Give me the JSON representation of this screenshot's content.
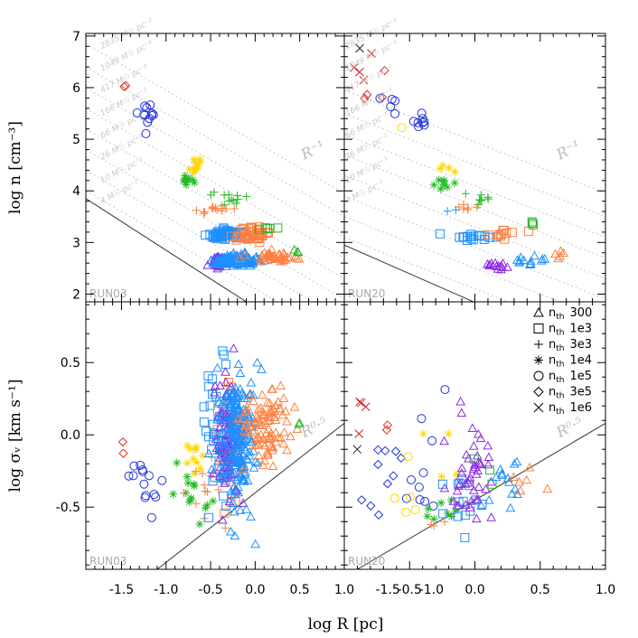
{
  "chart_data": {
    "type": "scatter",
    "xlabel": "log R [pc]",
    "x_ticks": [
      "-1.5",
      "-1.0",
      "-0.5",
      "0.0",
      "0.5",
      "1.0"
    ],
    "top_row": {
      "ylabel": "log n [cm⁻³]",
      "ylim": [
        1.85,
        7.05
      ],
      "y_ticks": [
        "2",
        "3",
        "4",
        "5",
        "6",
        "7"
      ],
      "guide_label": "R⁻¹",
      "surface_density_labels": [
        "2835 M☉ pc⁻²",
        "1049 M☉ pc⁻²",
        "417 M☉ pc⁻²",
        "166 M☉ pc⁻²",
        "66 M☉ pc⁻²",
        "26 M☉ pc⁻²",
        "10 M☉ pc⁻²",
        "4 M☉ pc⁻²"
      ]
    },
    "bottom_row": {
      "ylabel": "log σᵥ [km s⁻¹]",
      "ylim": [
        -0.93,
        0.92
      ],
      "y_ticks": [
        "-0.5",
        "0.0",
        "0.5"
      ],
      "guide_label": "R⁰·⁵"
    },
    "panels": [
      {
        "run": "RUN03",
        "xlim": [
          -1.9,
          1.0
        ]
      },
      {
        "run": "RUN20",
        "xlim": [
          -1.0,
          1.0
        ]
      }
    ],
    "legend": [
      {
        "marker": "triangle",
        "label": "n",
        "sub": "th",
        "value": "300",
        "color": "#ff7f3f"
      },
      {
        "marker": "square",
        "label": "n",
        "sub": "th",
        "value": "1e3",
        "color": "#1e90ff"
      },
      {
        "marker": "plus",
        "label": "n",
        "sub": "th",
        "value": "3e3",
        "color": "#22bb22"
      },
      {
        "marker": "asterisk",
        "label": "n",
        "sub": "th",
        "value": "1e4",
        "color": "#ffd700"
      },
      {
        "marker": "circle",
        "label": "n",
        "sub": "th",
        "value": "1e5",
        "color": "#2233dd"
      },
      {
        "marker": "diamond",
        "label": "n",
        "sub": "th",
        "value": "3e5",
        "color": "#dd3322"
      },
      {
        "marker": "cross",
        "label": "n",
        "sub": "th",
        "value": "1e6",
        "color": "#222222"
      }
    ],
    "series_colors": {
      "t300": "#ff7f3f",
      "t1e3": "#1e90ff",
      "t3e3": "#22bb22",
      "t1e4": "#ffd700",
      "t1e5": "#2233dd",
      "t3e5": "#dd3322",
      "t1e6": "#cc2222",
      "purple": "#8a2be2"
    },
    "clusters": {
      "top_RUN03": [
        {
          "marker": "diamond",
          "color": "#dd3322",
          "cx": -1.45,
          "cy": 6.0,
          "sx": 0.03,
          "sy": 0.08,
          "n": 2
        },
        {
          "marker": "circle",
          "color": "#2233dd",
          "cx": -1.22,
          "cy": 5.4,
          "sx": 0.07,
          "sy": 0.18,
          "n": 12
        },
        {
          "marker": "asterisk",
          "color": "#ffd700",
          "cx": -0.68,
          "cy": 4.42,
          "sx": 0.06,
          "sy": 0.1,
          "n": 12
        },
        {
          "marker": "asterisk",
          "color": "#22bb22",
          "cx": -0.75,
          "cy": 4.2,
          "sx": 0.05,
          "sy": 0.05,
          "n": 10
        },
        {
          "marker": "plus",
          "color": "#22bb22",
          "cx": -0.3,
          "cy": 3.85,
          "sx": 0.1,
          "sy": 0.08,
          "n": 12
        },
        {
          "marker": "plus",
          "color": "#ff7f3f",
          "cx": -0.45,
          "cy": 3.62,
          "sx": 0.1,
          "sy": 0.04,
          "n": 14
        },
        {
          "marker": "square",
          "color": "#1e90ff",
          "cx": -0.35,
          "cy": 3.16,
          "sx": 0.09,
          "sy": 0.05,
          "n": 70
        },
        {
          "marker": "square",
          "color": "#ff7f3f",
          "cx": -0.05,
          "cy": 3.15,
          "sx": 0.1,
          "sy": 0.07,
          "n": 45
        },
        {
          "marker": "square",
          "color": "#22bb22",
          "cx": 0.15,
          "cy": 3.3,
          "sx": 0.04,
          "sy": 0.04,
          "n": 5
        },
        {
          "marker": "triangle",
          "color": "#8a2be2",
          "cx": -0.42,
          "cy": 2.62,
          "sx": 0.05,
          "sy": 0.05,
          "n": 40
        },
        {
          "marker": "triangle",
          "color": "#1e90ff",
          "cx": -0.22,
          "cy": 2.66,
          "sx": 0.12,
          "sy": 0.05,
          "n": 140
        },
        {
          "marker": "triangle",
          "color": "#ff7f3f",
          "cx": 0.2,
          "cy": 2.72,
          "sx": 0.13,
          "sy": 0.05,
          "n": 40
        },
        {
          "marker": "triangle",
          "color": "#22bb22",
          "cx": 0.45,
          "cy": 2.85,
          "sx": 0.03,
          "sy": 0.05,
          "n": 3
        }
      ],
      "top_RUN20": [
        {
          "marker": "cross",
          "color": "#222222",
          "cx": -0.9,
          "cy": 6.75,
          "sx": 0.02,
          "sy": 0.02,
          "n": 1
        },
        {
          "marker": "cross",
          "color": "#cc2222",
          "cx": -0.85,
          "cy": 6.3,
          "sx": 0.05,
          "sy": 0.2,
          "n": 4
        },
        {
          "marker": "diamond",
          "color": "#dd3322",
          "cx": -0.75,
          "cy": 6.0,
          "sx": 0.08,
          "sy": 0.2,
          "n": 4
        },
        {
          "marker": "circle",
          "color": "#2233dd",
          "cx": -0.65,
          "cy": 5.65,
          "sx": 0.05,
          "sy": 0.1,
          "n": 5
        },
        {
          "marker": "circle",
          "color": "#2233dd",
          "cx": -0.42,
          "cy": 5.3,
          "sx": 0.06,
          "sy": 0.08,
          "n": 8
        },
        {
          "marker": "circle",
          "color": "#ffd700",
          "cx": -0.55,
          "cy": 5.2,
          "sx": 0.02,
          "sy": 0.03,
          "n": 1
        },
        {
          "marker": "asterisk",
          "color": "#ffd700",
          "cx": -0.2,
          "cy": 4.45,
          "sx": 0.04,
          "sy": 0.08,
          "n": 4
        },
        {
          "marker": "asterisk",
          "color": "#22bb22",
          "cx": -0.25,
          "cy": 4.15,
          "sx": 0.05,
          "sy": 0.06,
          "n": 8
        },
        {
          "marker": "plus",
          "color": "#22bb22",
          "cx": 0.05,
          "cy": 3.85,
          "sx": 0.06,
          "sy": 0.1,
          "n": 8
        },
        {
          "marker": "plus",
          "color": "#ff7f3f",
          "cx": -0.05,
          "cy": 3.65,
          "sx": 0.06,
          "sy": 0.04,
          "n": 6
        },
        {
          "marker": "plus",
          "color": "#1e90ff",
          "cx": -0.15,
          "cy": 3.6,
          "sx": 0.03,
          "sy": 0.03,
          "n": 2
        },
        {
          "marker": "square",
          "color": "#1e90ff",
          "cx": -0.02,
          "cy": 3.1,
          "sx": 0.08,
          "sy": 0.04,
          "n": 18
        },
        {
          "marker": "square",
          "color": "#ff7f3f",
          "cx": 0.25,
          "cy": 3.15,
          "sx": 0.07,
          "sy": 0.06,
          "n": 10
        },
        {
          "marker": "square",
          "color": "#22bb22",
          "cx": 0.45,
          "cy": 3.35,
          "sx": 0.03,
          "sy": 0.05,
          "n": 3
        },
        {
          "marker": "triangle",
          "color": "#8a2be2",
          "cx": 0.18,
          "cy": 2.55,
          "sx": 0.07,
          "sy": 0.04,
          "n": 14
        },
        {
          "marker": "triangle",
          "color": "#1e90ff",
          "cx": 0.42,
          "cy": 2.65,
          "sx": 0.08,
          "sy": 0.05,
          "n": 12
        },
        {
          "marker": "triangle",
          "color": "#ff7f3f",
          "cx": 0.7,
          "cy": 2.75,
          "sx": 0.06,
          "sy": 0.05,
          "n": 5
        }
      ],
      "bot_RUN03": [
        {
          "marker": "diamond",
          "color": "#dd3322",
          "cx": -1.47,
          "cy": -0.12,
          "sx": 0.03,
          "sy": 0.05,
          "n": 2
        },
        {
          "marker": "circle",
          "color": "#2233dd",
          "cx": -1.25,
          "cy": -0.3,
          "sx": 0.08,
          "sy": 0.15,
          "n": 14
        },
        {
          "marker": "asterisk",
          "color": "#22bb22",
          "cx": -0.7,
          "cy": -0.5,
          "sx": 0.08,
          "sy": 0.15,
          "n": 14
        },
        {
          "marker": "asterisk",
          "color": "#ffd700",
          "cx": -0.68,
          "cy": -0.2,
          "sx": 0.07,
          "sy": 0.15,
          "n": 10
        },
        {
          "marker": "plus",
          "color": "#ff7f3f",
          "cx": -0.5,
          "cy": -0.35,
          "sx": 0.1,
          "sy": 0.12,
          "n": 15
        },
        {
          "marker": "square",
          "color": "#1e90ff",
          "cx": -0.4,
          "cy": 0.0,
          "sx": 0.1,
          "sy": 0.25,
          "n": 60
        },
        {
          "marker": "square",
          "color": "#ff7f3f",
          "cx": -0.3,
          "cy": -0.1,
          "sx": 0.08,
          "sy": 0.2,
          "n": 25
        },
        {
          "marker": "triangle",
          "color": "#8a2be2",
          "cx": -0.3,
          "cy": -0.05,
          "sx": 0.07,
          "sy": 0.25,
          "n": 80
        },
        {
          "marker": "triangle",
          "color": "#1e90ff",
          "cx": -0.2,
          "cy": 0.0,
          "sx": 0.1,
          "sy": 0.25,
          "n": 200
        },
        {
          "marker": "triangle",
          "color": "#ff7f3f",
          "cx": 0.1,
          "cy": 0.05,
          "sx": 0.15,
          "sy": 0.15,
          "n": 90
        },
        {
          "marker": "triangle",
          "color": "#22bb22",
          "cx": 0.5,
          "cy": 0.1,
          "sx": 0.02,
          "sy": 0.03,
          "n": 2
        }
      ],
      "bot_RUN20": [
        {
          "marker": "cross",
          "color": "#cc2222",
          "cx": -0.9,
          "cy": 0.0,
          "sx": 0.04,
          "sy": 0.25,
          "n": 4
        },
        {
          "marker": "cross",
          "color": "#222222",
          "cx": -0.9,
          "cy": -0.1,
          "sx": 0.02,
          "sy": 0.02,
          "n": 1
        },
        {
          "marker": "diamond",
          "color": "#2233dd",
          "cx": -0.7,
          "cy": -0.2,
          "sx": 0.08,
          "sy": 0.2,
          "n": 10
        },
        {
          "marker": "diamond",
          "color": "#dd3322",
          "cx": -0.68,
          "cy": 0.05,
          "sx": 0.03,
          "sy": 0.03,
          "n": 2
        },
        {
          "marker": "circle",
          "color": "#2233dd",
          "cx": -0.4,
          "cy": -0.1,
          "sx": 0.08,
          "sy": 0.25,
          "n": 10
        },
        {
          "marker": "circle",
          "color": "#ffd700",
          "cx": -0.6,
          "cy": -0.3,
          "sx": 0.08,
          "sy": 0.2,
          "n": 5
        },
        {
          "marker": "asterisk",
          "color": "#22bb22",
          "cx": -0.3,
          "cy": -0.55,
          "sx": 0.08,
          "sy": 0.08,
          "n": 8
        },
        {
          "marker": "asterisk",
          "color": "#ffd700",
          "cx": -0.25,
          "cy": -0.2,
          "sx": 0.05,
          "sy": 0.15,
          "n": 4
        },
        {
          "marker": "plus",
          "color": "#ff7f3f",
          "cx": -0.3,
          "cy": -0.6,
          "sx": 0.05,
          "sy": 0.05,
          "n": 3
        },
        {
          "marker": "square",
          "color": "#1e90ff",
          "cx": -0.1,
          "cy": -0.45,
          "sx": 0.08,
          "sy": 0.1,
          "n": 14
        },
        {
          "marker": "square",
          "color": "#22bb22",
          "cx": 0.05,
          "cy": -0.2,
          "sx": 0.05,
          "sy": 0.1,
          "n": 3
        },
        {
          "marker": "triangle",
          "color": "#8a2be2",
          "cx": 0.0,
          "cy": -0.3,
          "sx": 0.1,
          "sy": 0.2,
          "n": 45
        },
        {
          "marker": "triangle",
          "color": "#1e90ff",
          "cx": 0.25,
          "cy": -0.35,
          "sx": 0.1,
          "sy": 0.1,
          "n": 14
        },
        {
          "marker": "triangle",
          "color": "#ff7f3f",
          "cx": 0.4,
          "cy": -0.3,
          "sx": 0.08,
          "sy": 0.08,
          "n": 6
        }
      ]
    }
  }
}
